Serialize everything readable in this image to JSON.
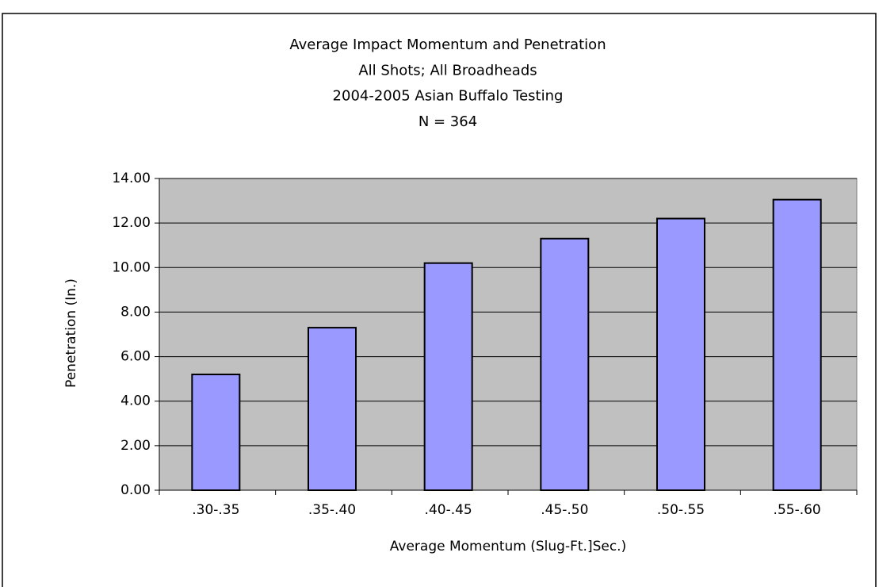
{
  "chart_data": {
    "type": "bar",
    "title": [
      "Average Impact Momentum and Penetration",
      "All Shots; All Broadheads",
      "2004-2005 Asian Buffalo Testing",
      "N = 364"
    ],
    "x_label": "Average Momentum (Slug-Ft.]Sec.)",
    "y_label": "Penetration (In.)",
    "categories": [
      ".30-.35",
      ".35-.40",
      ".40-.45",
      ".45-.50",
      ".50-.55",
      ".55-.60"
    ],
    "values": [
      5.2,
      7.3,
      10.2,
      11.3,
      12.2,
      13.05
    ],
    "color": "#9999ff",
    "ylim": [
      0,
      14
    ],
    "yticks": [
      {
        "value": 0,
        "label": "0.00"
      },
      {
        "value": 2,
        "label": "2.00"
      },
      {
        "value": 4,
        "label": "4.00"
      },
      {
        "value": 6,
        "label": "6.00"
      },
      {
        "value": 8,
        "label": "8.00"
      },
      {
        "value": 10,
        "label": "10.00"
      },
      {
        "value": 12,
        "label": "12.00"
      },
      {
        "value": 14,
        "label": "14.00"
      }
    ],
    "grid": true
  }
}
